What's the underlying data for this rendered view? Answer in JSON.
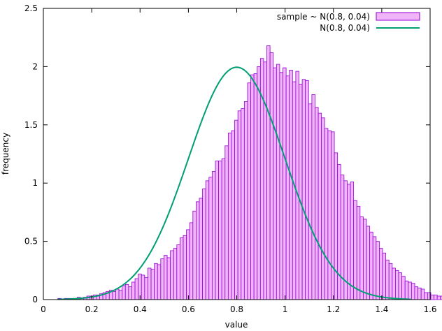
{
  "chart_data": {
    "type": "bar",
    "xlabel": "value",
    "ylabel": "frequency",
    "xlim": [
      0,
      1.6
    ],
    "ylim": [
      0,
      2.5
    ],
    "xticks": [
      "0",
      "0.2",
      "0.4",
      "0.6",
      "0.8",
      "1",
      "1.2",
      "1.4",
      "1.6"
    ],
    "yticks": [
      "0",
      "0.5",
      "1",
      "1.5",
      "2",
      "2.5"
    ],
    "grid": false,
    "legend_position": "top-right",
    "histogram": {
      "name": "sample ~ N(0.8, 0.04)",
      "bin_start": 0.06,
      "bin_width": 0.0133,
      "values": [
        0.01,
        0.0,
        0.01,
        0.01,
        0.01,
        0.01,
        0.02,
        0.01,
        0.02,
        0.03,
        0.03,
        0.04,
        0.04,
        0.05,
        0.06,
        0.07,
        0.08,
        0.07,
        0.09,
        0.08,
        0.12,
        0.13,
        0.11,
        0.15,
        0.18,
        0.22,
        0.21,
        0.19,
        0.27,
        0.26,
        0.31,
        0.3,
        0.35,
        0.38,
        0.36,
        0.42,
        0.44,
        0.47,
        0.53,
        0.55,
        0.6,
        0.66,
        0.76,
        0.84,
        0.87,
        0.95,
        1.02,
        1.05,
        1.1,
        1.19,
        1.19,
        1.21,
        1.32,
        1.43,
        1.45,
        1.54,
        1.62,
        1.64,
        1.7,
        1.86,
        1.93,
        1.94,
        2.0,
        2.07,
        2.04,
        2.18,
        2.12,
        1.99,
        2.02,
        1.95,
        1.99,
        1.92,
        1.97,
        1.87,
        1.96,
        1.85,
        1.89,
        1.88,
        1.68,
        1.76,
        1.65,
        1.6,
        1.56,
        1.47,
        1.45,
        1.44,
        1.26,
        1.16,
        1.07,
        1.02,
        0.99,
        1.01,
        0.85,
        0.8,
        0.71,
        0.69,
        0.63,
        0.58,
        0.54,
        0.5,
        0.44,
        0.4,
        0.34,
        0.31,
        0.27,
        0.25,
        0.23,
        0.2,
        0.16,
        0.15,
        0.14,
        0.11,
        0.1,
        0.09,
        0.06,
        0.06,
        0.04,
        0.04,
        0.03,
        0.03,
        0.02,
        0.02,
        0.01,
        0.01,
        0.01,
        0.01,
        0.01,
        0.01,
        0.0,
        0.01,
        0.01,
        0.0,
        0.01,
        0.0,
        0.01,
        0.0,
        0.01,
        0.0,
        0.01
      ],
      "fill": "#f0b4f8",
      "stroke": "#9400d3"
    },
    "curve": {
      "name": "N(0.8, 0.04)",
      "mean": 0.8,
      "variance": 0.04,
      "x_range": [
        0.06,
        1.52
      ],
      "color": "#009e73"
    }
  }
}
